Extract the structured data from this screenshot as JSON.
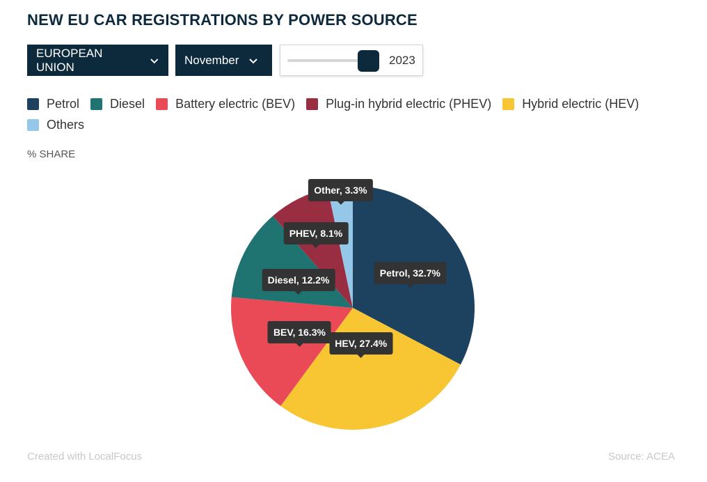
{
  "title": "NEW EU CAR REGISTRATIONS BY POWER SOURCE",
  "controls": {
    "region": "EUROPEAN UNION",
    "month": "November",
    "year": "2023",
    "year_slider_position": 0.86
  },
  "share_label": "% SHARE",
  "footer": {
    "credit": "Created with LocalFocus",
    "source": "Source:  ACEA"
  },
  "chart_data": {
    "type": "pie",
    "title": "NEW EU CAR REGISTRATIONS BY POWER SOURCE",
    "legend": [
      {
        "name": "Petrol",
        "color": "#1d425f"
      },
      {
        "name": "Diesel",
        "color": "#1f7471"
      },
      {
        "name": "Battery electric (BEV)",
        "color": "#e94a55"
      },
      {
        "name": "Plug-in hybrid electric (PHEV)",
        "color": "#992d42"
      },
      {
        "name": "Hybrid electric (HEV)",
        "color": "#f7c632"
      },
      {
        "name": "Others",
        "color": "#95c7e9"
      }
    ],
    "slices": [
      {
        "label": "Petrol",
        "value": 32.7,
        "tooltip": "Petrol, 32.7%",
        "color": "#1d425f"
      },
      {
        "label": "HEV",
        "value": 27.4,
        "tooltip": "HEV, 27.4%",
        "color": "#f7c632"
      },
      {
        "label": "BEV",
        "value": 16.3,
        "tooltip": "BEV, 16.3%",
        "color": "#e94a55"
      },
      {
        "label": "Diesel",
        "value": 12.2,
        "tooltip": "Diesel, 12.2%",
        "color": "#1f7471"
      },
      {
        "label": "PHEV",
        "value": 8.1,
        "tooltip": "PHEV, 8.1%",
        "color": "#992d42"
      },
      {
        "label": "Other",
        "value": 3.3,
        "tooltip": "Other, 3.3%",
        "color": "#95c7e9"
      }
    ],
    "unit": "%"
  }
}
